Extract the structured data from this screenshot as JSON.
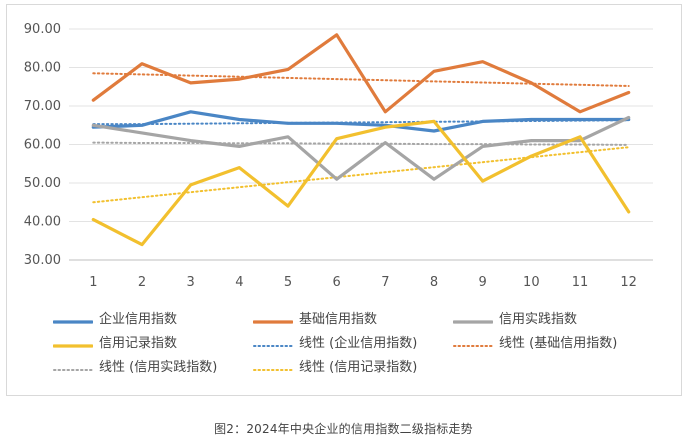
{
  "chart_data": {
    "type": "line",
    "title": "",
    "xlabel": "",
    "ylabel": "",
    "categories": [
      "1",
      "2",
      "3",
      "4",
      "5",
      "6",
      "7",
      "8",
      "9",
      "10",
      "11",
      "12"
    ],
    "ylim": [
      30,
      90
    ],
    "yticks": [
      "30.00",
      "40.00",
      "50.00",
      "60.00",
      "70.00",
      "80.00",
      "90.00"
    ],
    "grid": true,
    "series": [
      {
        "name": "企业信用指数",
        "color": "#4a86c5",
        "style": "solid",
        "values": [
          64.5,
          65,
          68.5,
          66.5,
          65.5,
          65.5,
          65,
          63.5,
          66,
          66.5,
          66.5,
          66.5
        ]
      },
      {
        "name": "基础信用指数",
        "color": "#e07b3c",
        "style": "solid",
        "values": [
          71.5,
          81,
          76,
          77,
          79.5,
          88.5,
          68.5,
          79,
          81.5,
          76,
          68.5,
          73.5
        ]
      },
      {
        "name": "信用实践指数",
        "color": "#a5a5a5",
        "style": "solid",
        "values": [
          65,
          63,
          61,
          59.5,
          62,
          51,
          60.5,
          51,
          59.5,
          61,
          61,
          67
        ]
      },
      {
        "name": "信用记录指数",
        "color": "#f2c02e",
        "style": "solid",
        "values": [
          40.5,
          34,
          49.5,
          54,
          44,
          61.5,
          64.5,
          66,
          50.5,
          57,
          62,
          42.5
        ]
      },
      {
        "name": "线性 (企业信用指数)",
        "color": "#4a86c5",
        "style": "dotted",
        "values": [
          65.3,
          65.3,
          65.4,
          65.5,
          65.6,
          65.7,
          65.8,
          65.9,
          66.0,
          66.1,
          66.2,
          66.3
        ]
      },
      {
        "name": "线性 (基础信用指数)",
        "color": "#e07b3c",
        "style": "dotted",
        "values": [
          78.5,
          78.2,
          77.9,
          77.6,
          77.3,
          77.0,
          76.7,
          76.4,
          76.1,
          75.8,
          75.5,
          75.2
        ]
      },
      {
        "name": "线性 (信用实践指数)",
        "color": "#a5a5a5",
        "style": "dotted",
        "values": [
          60.5,
          60.4,
          60.4,
          60.3,
          60.3,
          60.2,
          60.2,
          60.1,
          60.1,
          60.0,
          60.0,
          59.9
        ]
      },
      {
        "name": "线性 (信用记录指数)",
        "color": "#f2c02e",
        "style": "dotted",
        "values": [
          45,
          46.3,
          47.6,
          48.9,
          50.2,
          51.5,
          52.8,
          54.1,
          55.4,
          56.7,
          58.0,
          59.3
        ]
      }
    ]
  },
  "legend": {
    "rows": [
      [
        "企业信用指数",
        "基础信用指数",
        "信用实践指数"
      ],
      [
        "信用记录指数",
        "线性 (企业信用指数)",
        "线性 (基础信用指数)"
      ],
      [
        "线性 (信用实践指数)",
        "线性 (信用记录指数)"
      ]
    ]
  },
  "caption": "图2：2024年中央企业的信用指数二级指标走势"
}
